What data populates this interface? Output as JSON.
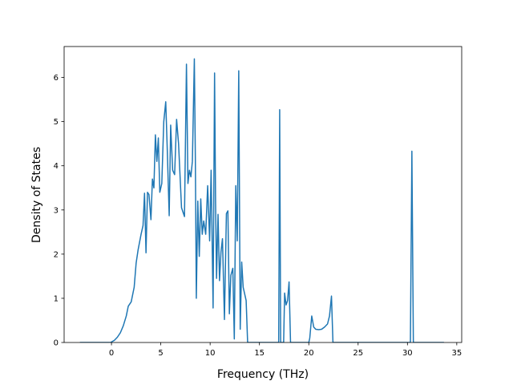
{
  "chart_data": {
    "type": "line",
    "title": "",
    "xlabel": "Frequency (THz)",
    "ylabel": "Density of States",
    "xlim": [
      -4.8,
      35.5
    ],
    "ylim": [
      0,
      6.7
    ],
    "x_ticks": [
      0,
      5,
      10,
      15,
      20,
      25,
      30,
      35
    ],
    "y_ticks": [
      0,
      1,
      2,
      3,
      4,
      5,
      6
    ],
    "grid": false,
    "legend": "none",
    "series": [
      {
        "color": "#1f77b4",
        "x": [
          -3.2,
          -0.1,
          0.3,
          0.6,
          0.9,
          1.2,
          1.5,
          1.7,
          2.0,
          2.3,
          2.5,
          2.7,
          3.0,
          3.2,
          3.35,
          3.5,
          3.65,
          3.8,
          4.0,
          4.15,
          4.3,
          4.45,
          4.6,
          4.75,
          4.9,
          5.1,
          5.3,
          5.5,
          5.65,
          5.85,
          6.0,
          6.2,
          6.4,
          6.6,
          6.8,
          7.1,
          7.4,
          7.6,
          7.75,
          7.9,
          8.05,
          8.2,
          8.4,
          8.5,
          8.6,
          8.75,
          8.9,
          9.05,
          9.2,
          9.35,
          9.55,
          9.75,
          9.95,
          10.1,
          10.3,
          10.45,
          10.55,
          10.65,
          10.8,
          10.95,
          11.1,
          11.25,
          11.45,
          11.65,
          11.8,
          11.95,
          12.1,
          12.3,
          12.45,
          12.6,
          12.75,
          12.9,
          13.05,
          13.2,
          13.35,
          13.5,
          13.65,
          13.8,
          14.0,
          14.2,
          14.4,
          14.6,
          14.8,
          15.0,
          16.8,
          16.95,
          17.05,
          17.15,
          17.3,
          17.45,
          17.55,
          17.7,
          17.85,
          18.0,
          18.15,
          18.3,
          18.45,
          18.6,
          18.8,
          20.0,
          20.1,
          20.3,
          20.5,
          20.7,
          21.0,
          21.3,
          21.6,
          21.9,
          22.1,
          22.3,
          22.45,
          22.6,
          22.75,
          30.1,
          30.3,
          30.45,
          30.6,
          30.75,
          33.7
        ],
        "y": [
          0,
          0,
          0.05,
          0.12,
          0.22,
          0.38,
          0.6,
          0.82,
          0.92,
          1.25,
          1.8,
          2.1,
          2.45,
          2.65,
          3.38,
          2.03,
          3.4,
          3.35,
          2.78,
          3.7,
          3.5,
          4.7,
          4.1,
          4.63,
          3.4,
          3.6,
          5.0,
          5.45,
          4.4,
          2.87,
          4.92,
          3.9,
          3.8,
          5.05,
          4.5,
          3.05,
          2.85,
          6.3,
          3.6,
          3.9,
          3.75,
          4.1,
          6.42,
          4.2,
          1.0,
          3.2,
          1.95,
          3.25,
          2.45,
          2.75,
          2.45,
          3.55,
          2.3,
          3.9,
          0.78,
          6.1,
          3.2,
          1.45,
          2.9,
          1.4,
          2.05,
          2.35,
          0.52,
          2.92,
          2.98,
          0.65,
          1.52,
          1.68,
          0.08,
          3.55,
          2.3,
          6.15,
          0.3,
          1.82,
          1.25,
          1.1,
          0.95,
          0,
          0,
          0,
          0,
          0,
          0,
          0,
          0,
          0,
          5.27,
          0,
          0,
          0,
          1.12,
          0.85,
          0.95,
          1.37,
          0,
          0,
          0,
          0,
          0,
          0,
          0.1,
          0.6,
          0.35,
          0.3,
          0.29,
          0.3,
          0.35,
          0.42,
          0.6,
          1.05,
          0,
          0,
          0,
          0,
          0,
          4.33,
          0,
          0,
          0
        ]
      }
    ]
  }
}
